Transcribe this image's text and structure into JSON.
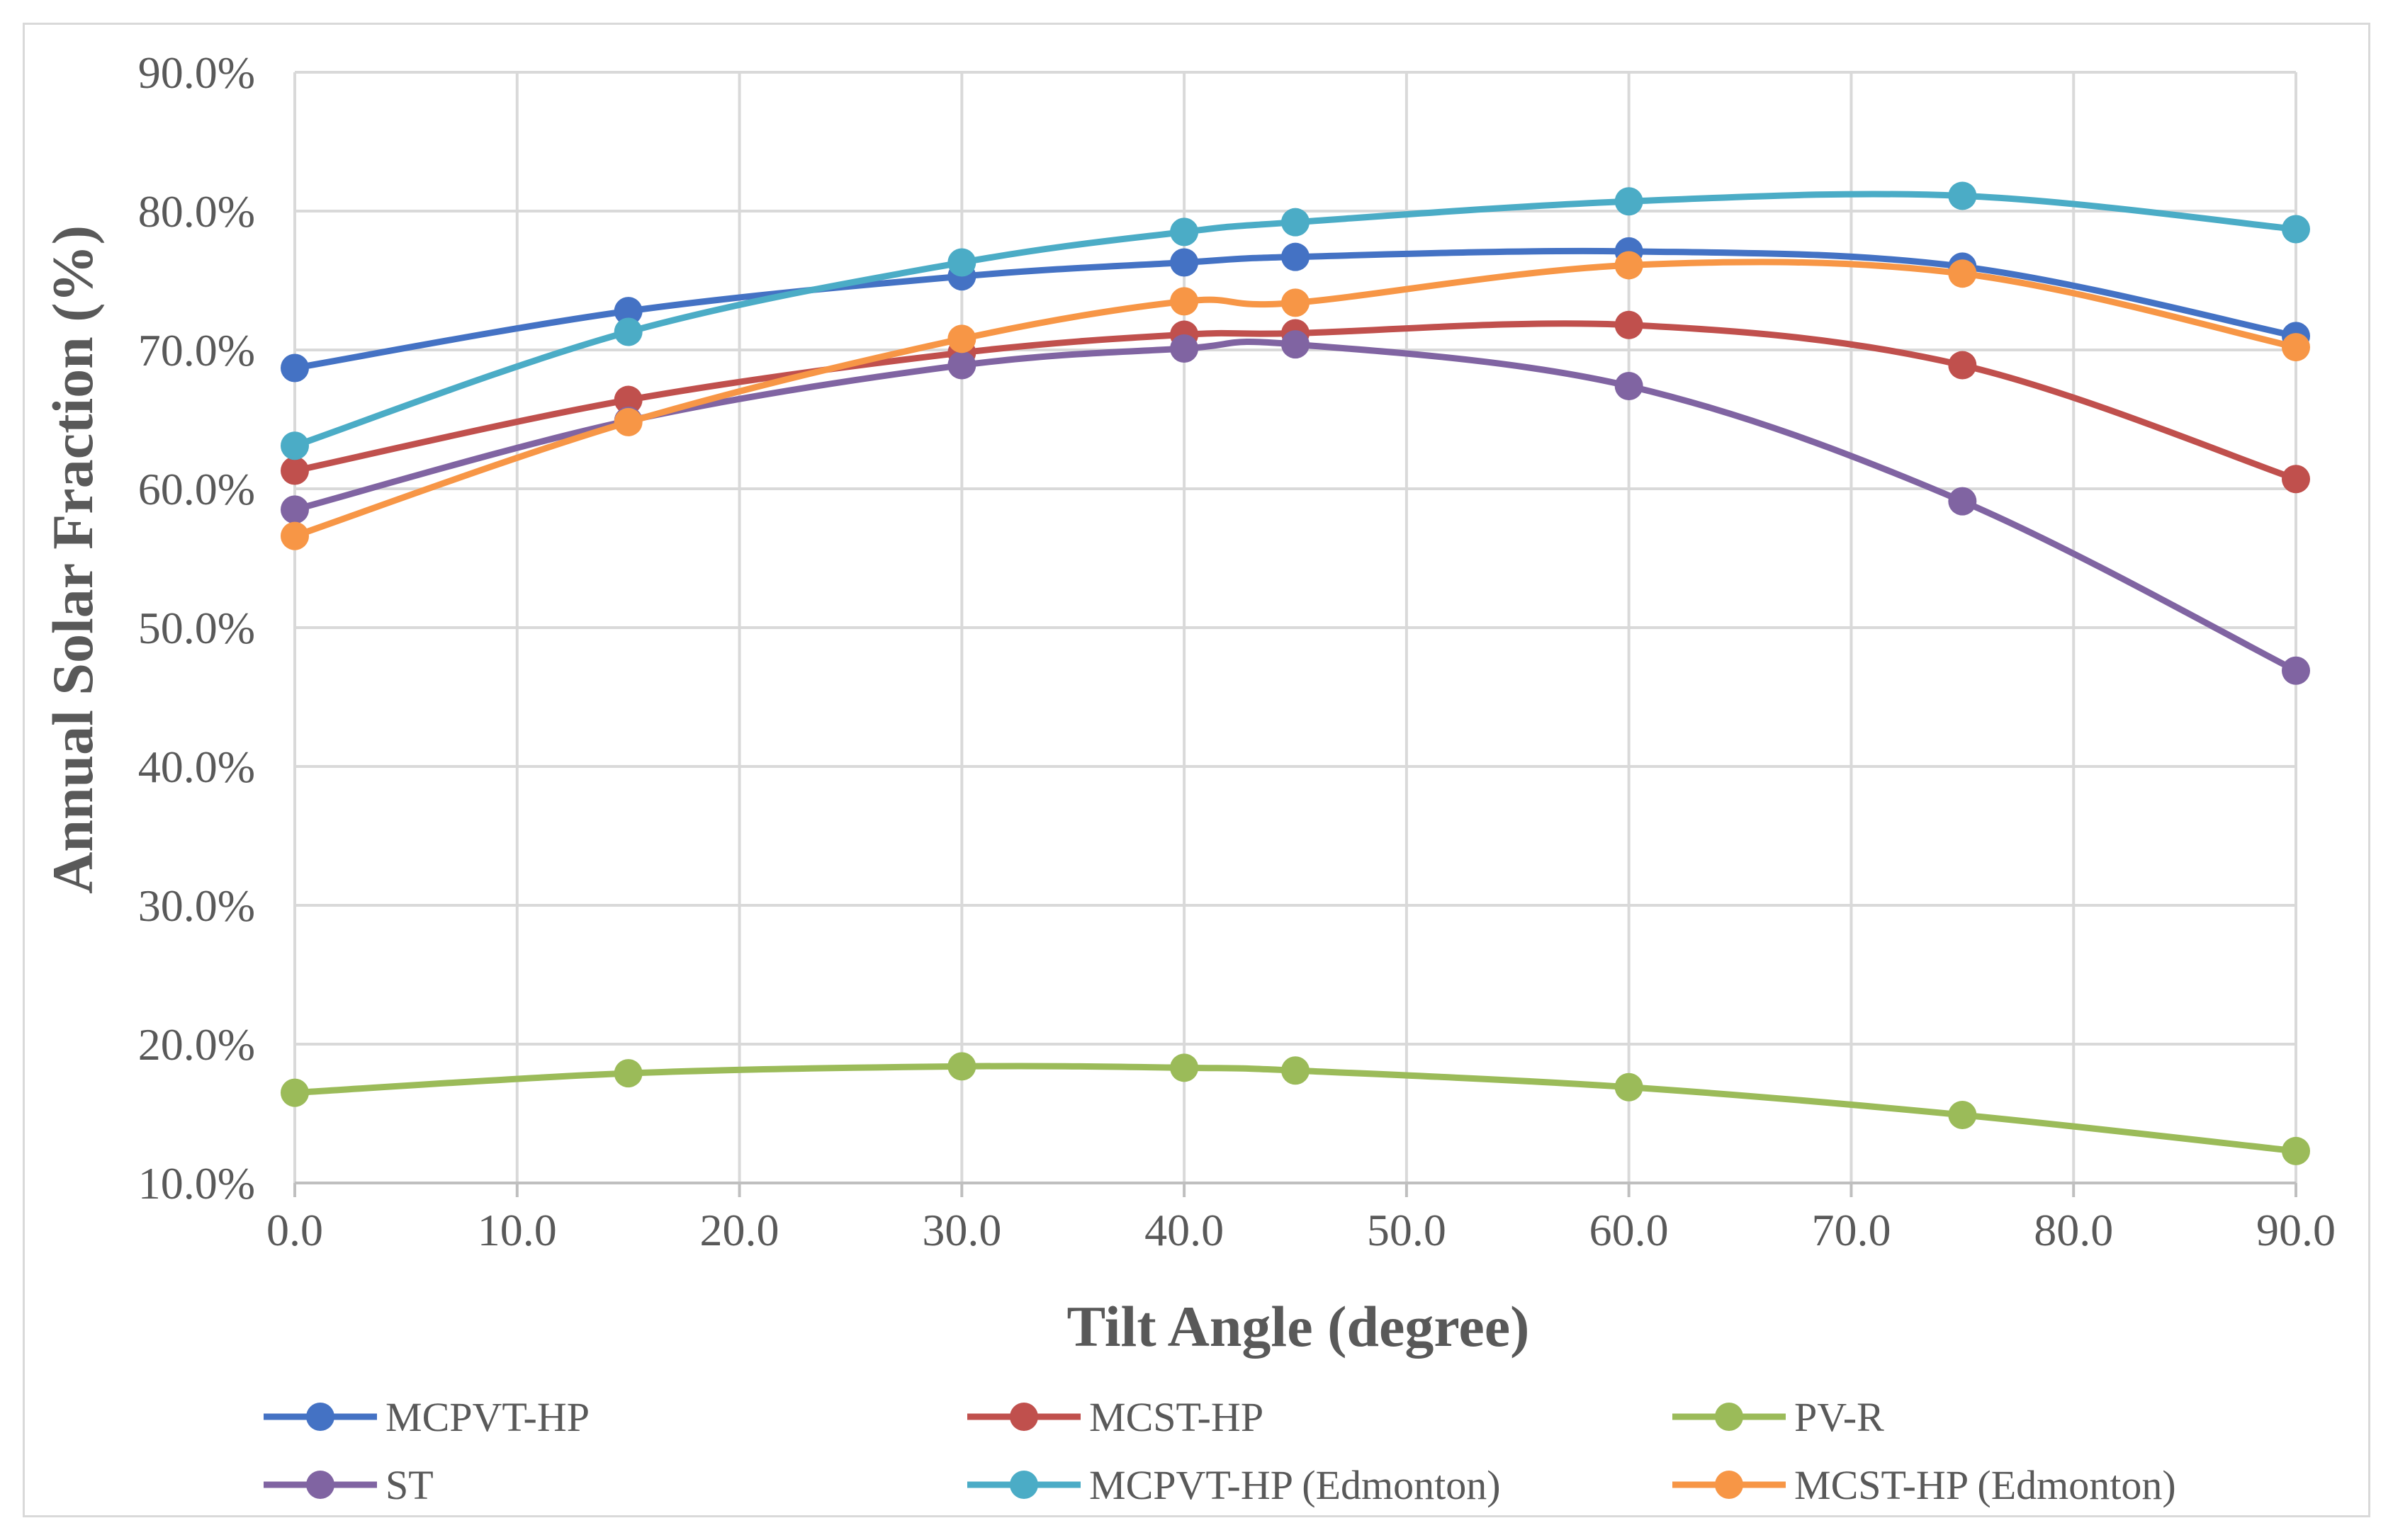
{
  "chart_data": {
    "type": "line",
    "title": "",
    "xlabel": "Tilt Angle (degree)",
    "ylabel": "Annual Solar Fraction (%)",
    "xlim": [
      0,
      90
    ],
    "ylim": [
      10,
      90
    ],
    "x_ticks": [
      0,
      10,
      20,
      30,
      40,
      50,
      60,
      70,
      80,
      90
    ],
    "x_tick_labels": [
      "0.0",
      "10.0",
      "20.0",
      "30.0",
      "40.0",
      "50.0",
      "60.0",
      "70.0",
      "80.0",
      "90.0"
    ],
    "y_ticks": [
      10,
      20,
      30,
      40,
      50,
      60,
      70,
      80,
      90
    ],
    "y_tick_labels": [
      "10.0%",
      "20.0%",
      "30.0%",
      "40.0%",
      "50.0%",
      "60.0%",
      "70.0%",
      "80.0%",
      "90.0%"
    ],
    "grid": true,
    "legend_position": "bottom",
    "x": [
      0,
      15,
      30,
      40,
      45,
      60,
      75,
      90
    ],
    "series": [
      {
        "name": "MCPVT-HP",
        "color": "#4472c4",
        "values": [
          68.7,
          72.8,
          75.3,
          76.3,
          76.7,
          77.1,
          76.0,
          71.0
        ]
      },
      {
        "name": "MCST-HP",
        "color": "#c0504d",
        "values": [
          61.3,
          66.4,
          69.8,
          71.1,
          71.2,
          71.8,
          68.9,
          60.7
        ]
      },
      {
        "name": "PV-R",
        "color": "#9bbb59",
        "values": [
          16.5,
          17.9,
          18.4,
          18.3,
          18.1,
          16.9,
          14.9,
          12.3
        ]
      },
      {
        "name": "ST",
        "color": "#8064a2",
        "values": [
          58.5,
          64.9,
          68.9,
          70.1,
          70.4,
          67.4,
          59.1,
          46.9
        ]
      },
      {
        "name": "MCPVT-HP (Edmonton)",
        "color": "#4bacc6",
        "values": [
          63.1,
          71.3,
          76.3,
          78.5,
          79.2,
          80.7,
          81.1,
          78.7
        ]
      },
      {
        "name": "MCST-HP (Edmonton)",
        "color": "#f79646",
        "values": [
          56.6,
          64.8,
          70.8,
          73.5,
          73.4,
          76.1,
          75.5,
          70.2
        ]
      }
    ]
  }
}
